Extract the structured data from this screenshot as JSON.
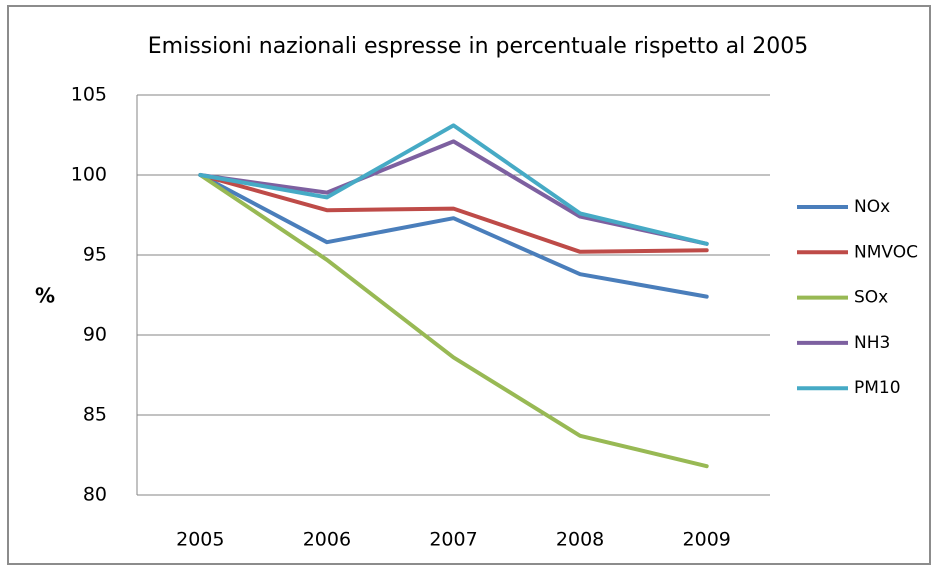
{
  "chart_data": {
    "type": "line",
    "title": "Emissioni nazionali espresse in percentuale rispetto al 2005",
    "y_label": "%",
    "categories": [
      "2005",
      "2006",
      "2007",
      "2008",
      "2009"
    ],
    "series": [
      {
        "name": "NOx",
        "color": "#4a7ebb",
        "values": [
          100,
          95.8,
          97.3,
          93.8,
          92.4
        ]
      },
      {
        "name": "NMVOC",
        "color": "#be4b48",
        "values": [
          100,
          97.8,
          97.9,
          95.2,
          95.3
        ]
      },
      {
        "name": "SOx",
        "color": "#98b954",
        "values": [
          100,
          94.7,
          88.6,
          83.7,
          81.8
        ]
      },
      {
        "name": "NH3",
        "color": "#7d60a0",
        "values": [
          100,
          98.9,
          102.1,
          97.4,
          95.7
        ]
      },
      {
        "name": "PM10",
        "color": "#46aac5",
        "values": [
          100,
          98.6,
          103.1,
          97.6,
          95.7
        ]
      }
    ],
    "ylim": [
      80,
      105
    ],
    "yticks": [
      80,
      85,
      90,
      95,
      100,
      105
    ],
    "grid": true,
    "legend": "right"
  }
}
